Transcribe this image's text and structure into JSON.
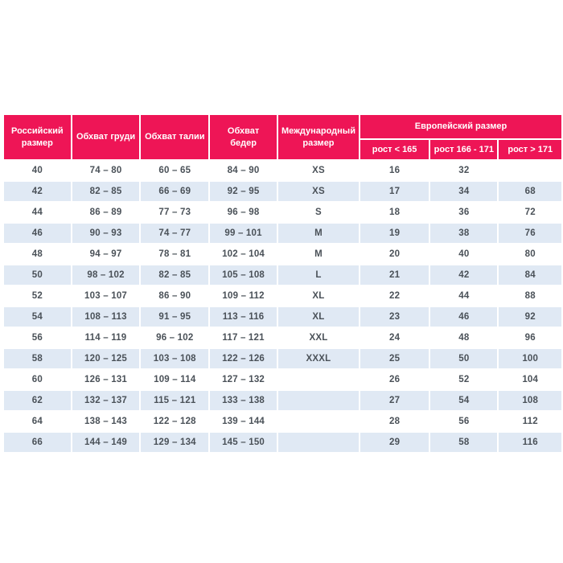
{
  "table": {
    "colors": {
      "header_bg": "#ee1556",
      "header_text": "#ffffff",
      "row_bg": "#ffffff",
      "row_alt_bg": "#e0e9f4",
      "cell_text": "#4a5158"
    },
    "header": {
      "russian_size": "Российский размер",
      "chest": "Обхват груди",
      "waist": "Обхват талии",
      "hips": "Обхват бедер",
      "international_size": "Международный размер",
      "european_size": "Европейский размер",
      "height_lt_165": "рост < 165",
      "height_166_171": "рост 166 - 171",
      "height_gt_171": "рост > 171"
    },
    "rows": [
      [
        "40",
        "74 – 80",
        "60 – 65",
        "84 – 90",
        "XS",
        "16",
        "32",
        ""
      ],
      [
        "42",
        "82 – 85",
        "66 – 69",
        "92 – 95",
        "XS",
        "17",
        "34",
        "68"
      ],
      [
        "44",
        "86 – 89",
        "77 – 73",
        "96 – 98",
        "S",
        "18",
        "36",
        "72"
      ],
      [
        "46",
        "90 – 93",
        "74 – 77",
        "99 – 101",
        "M",
        "19",
        "38",
        "76"
      ],
      [
        "48",
        "94 – 97",
        "78 – 81",
        "102 – 104",
        "M",
        "20",
        "40",
        "80"
      ],
      [
        "50",
        "98 – 102",
        "82 – 85",
        "105 – 108",
        "L",
        "21",
        "42",
        "84"
      ],
      [
        "52",
        "103 – 107",
        "86 – 90",
        "109 – 112",
        "XL",
        "22",
        "44",
        "88"
      ],
      [
        "54",
        "108 – 113",
        "91 – 95",
        "113 – 116",
        "XL",
        "23",
        "46",
        "92"
      ],
      [
        "56",
        "114 – 119",
        "96 – 102",
        "117 – 121",
        "XXL",
        "24",
        "48",
        "96"
      ],
      [
        "58",
        "120 – 125",
        "103 – 108",
        "122 – 126",
        "XXXL",
        "25",
        "50",
        "100"
      ],
      [
        "60",
        "126 – 131",
        "109 – 114",
        "127 – 132",
        "",
        "26",
        "52",
        "104"
      ],
      [
        "62",
        "132 – 137",
        "115 – 121",
        "133 – 138",
        "",
        "27",
        "54",
        "108"
      ],
      [
        "64",
        "138 – 143",
        "122 – 128",
        "139 – 144",
        "",
        "28",
        "56",
        "112"
      ],
      [
        "66",
        "144 – 149",
        "129 – 134",
        "145 – 150",
        "",
        "29",
        "58",
        "116"
      ]
    ]
  }
}
